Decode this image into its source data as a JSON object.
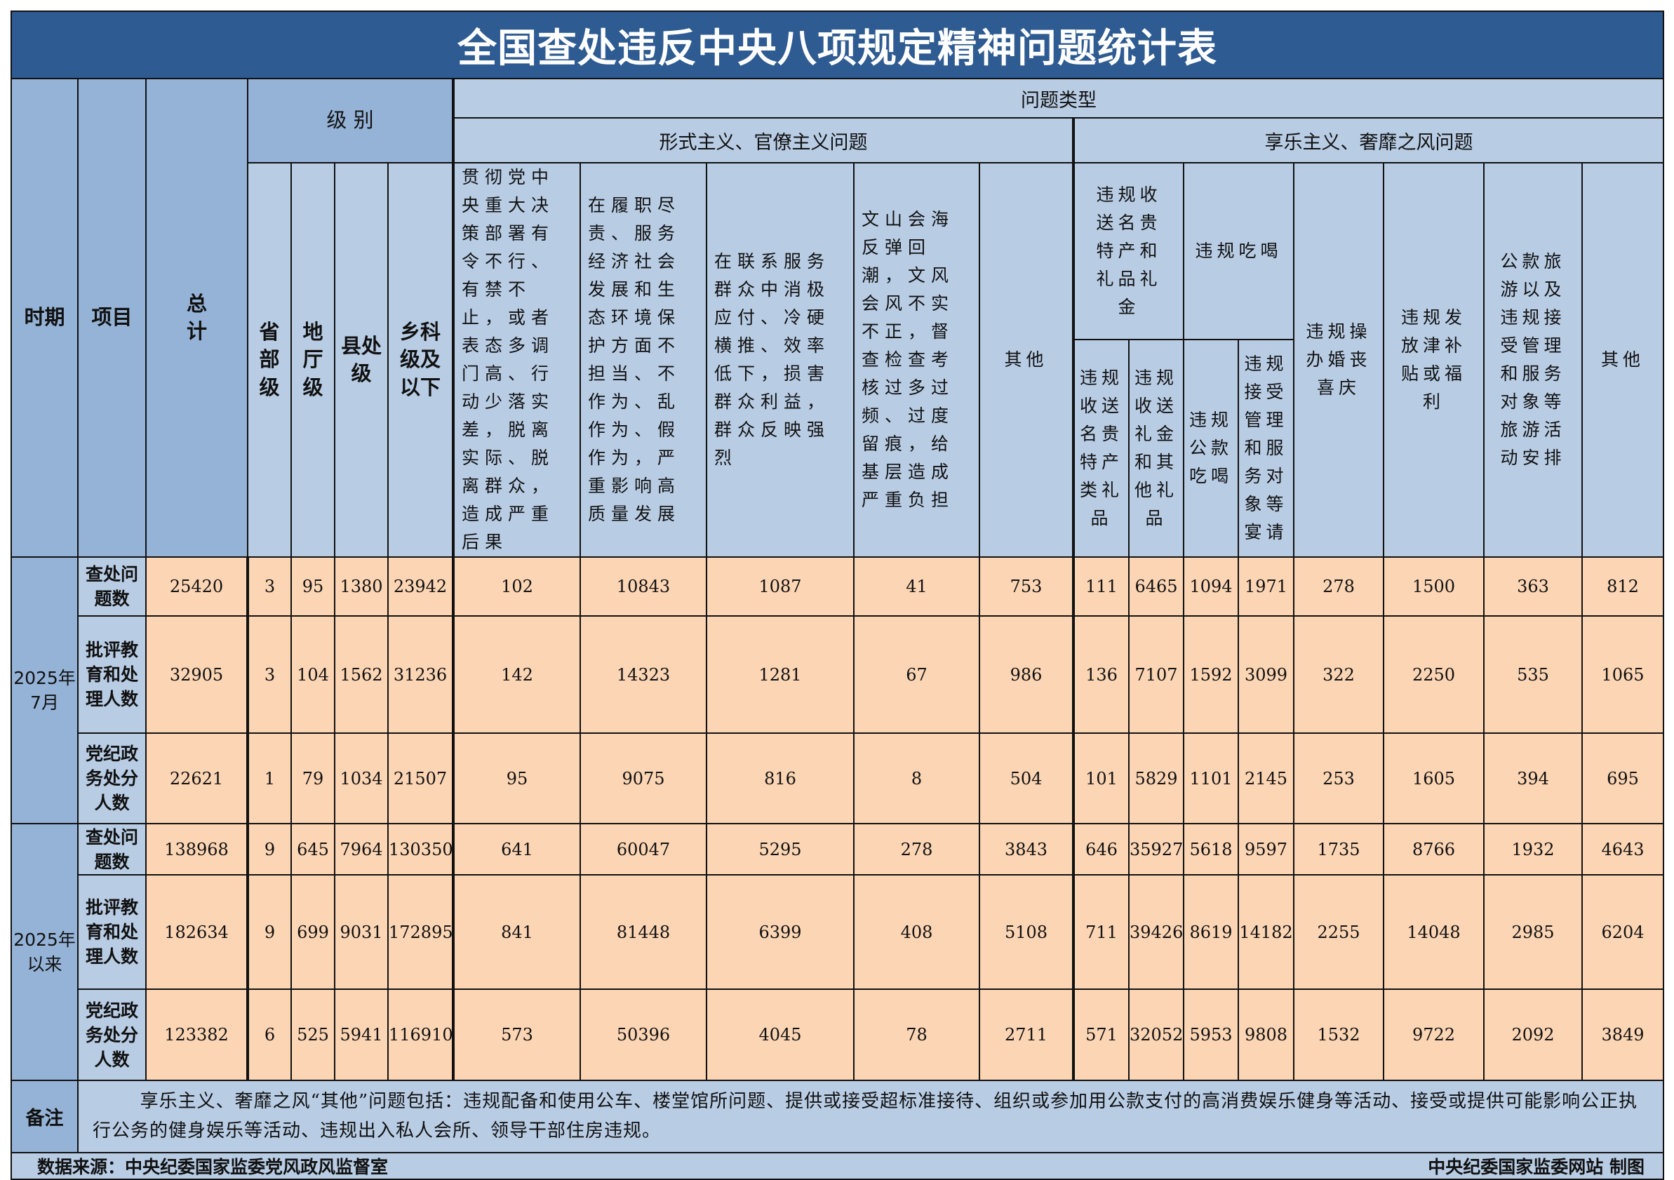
{
  "title": "全国查处违反中央八项规定精神问题统计表",
  "colors": {
    "title_bg": "#2e5b91",
    "header_bg": "#b8cce4",
    "side_bg": "#95b3d7",
    "data_bg": "#fcd5b4"
  },
  "header": {
    "period": "时期",
    "item": "项目",
    "total": "总计",
    "level": "级 别",
    "levels": [
      "省部级",
      "地厅级",
      "县处级",
      "乡科级及以下"
    ],
    "problem_type": "问题类型",
    "formalism": "形式主义、官僚主义问题",
    "hedonism": "享乐主义、奢靡之风问题",
    "formalism_cols": [
      "贯彻党中央重大决策部署有令不行、有禁不止，或者表态多调门高、行动少落实差，脱离实际、脱离群众，造成严重后果",
      "在履职尽责、服务经济社会发展和生态环境保护方面不担当、不作为、乱作为、假作为，严重影响高质量发展",
      "在联系服务群众中消极应付、冷硬横推、效率低下，损害群众利益，群众反映强烈",
      "文山会海反弹回潮，文风会风不实不正，督查检查考核过多过频、过度留痕，给基层造成严重负担",
      "其他"
    ],
    "gifts_group": "违规收送名贵特产和礼品礼金",
    "gifts_sub": [
      "违规收送名贵特产类礼品",
      "违规收送礼金和其他礼品"
    ],
    "dining_group": "违规吃喝",
    "dining_sub": [
      "违规公款吃喝",
      "违规接受管理和服务对象等宴请"
    ],
    "hedonism_cols": [
      "违规操办婚丧喜庆",
      "违规发放津补贴或福利",
      "公款旅游以及违规接受管理和服务对象等旅游活动安排",
      "其他"
    ]
  },
  "periods": [
    {
      "label": "2025年7月",
      "rows": [
        {
          "item": "查处问题数",
          "values": [
            "25420",
            "3",
            "95",
            "1380",
            "23942",
            "102",
            "10843",
            "1087",
            "41",
            "753",
            "111",
            "6465",
            "1094",
            "1971",
            "278",
            "1500",
            "363",
            "812"
          ]
        },
        {
          "item": "批评教育和处理人数",
          "values": [
            "32905",
            "3",
            "104",
            "1562",
            "31236",
            "142",
            "14323",
            "1281",
            "67",
            "986",
            "136",
            "7107",
            "1592",
            "3099",
            "322",
            "2250",
            "535",
            "1065"
          ]
        },
        {
          "item": "党纪政务处分人数",
          "values": [
            "22621",
            "1",
            "79",
            "1034",
            "21507",
            "95",
            "9075",
            "816",
            "8",
            "504",
            "101",
            "5829",
            "1101",
            "2145",
            "253",
            "1605",
            "394",
            "695"
          ]
        }
      ]
    },
    {
      "label": "2025年以来",
      "rows": [
        {
          "item": "查处问题数",
          "values": [
            "138968",
            "9",
            "645",
            "7964",
            "130350",
            "641",
            "60047",
            "5295",
            "278",
            "3843",
            "646",
            "35927",
            "5618",
            "9597",
            "1735",
            "8766",
            "1932",
            "4643"
          ]
        },
        {
          "item": "批评教育和处理人数",
          "values": [
            "182634",
            "9",
            "699",
            "9031",
            "172895",
            "841",
            "81448",
            "6399",
            "408",
            "5108",
            "711",
            "39426",
            "8619",
            "14182",
            "2255",
            "14048",
            "2985",
            "6204"
          ]
        },
        {
          "item": "党纪政务处分人数",
          "values": [
            "123382",
            "6",
            "525",
            "5941",
            "116910",
            "573",
            "50396",
            "4045",
            "78",
            "2711",
            "571",
            "32052",
            "5953",
            "9808",
            "1532",
            "9722",
            "2092",
            "3849"
          ]
        }
      ]
    }
  ],
  "notes": {
    "label": "备注",
    "text": "享乐主义、奢靡之风“其他”问题包括：违规配备和使用公车、楼堂馆所问题、提供或接受超标准接待、组织或参加用公款支付的高消费娱乐健身等活动、接受或提供可能影响公正执行公务的健身娱乐等活动、违规出入私人会所、领导干部住房违规。"
  },
  "footer": {
    "source": "数据来源：中央纪委国家监委党风政风监督室",
    "credit": "中央纪委国家监委网站 制图"
  }
}
